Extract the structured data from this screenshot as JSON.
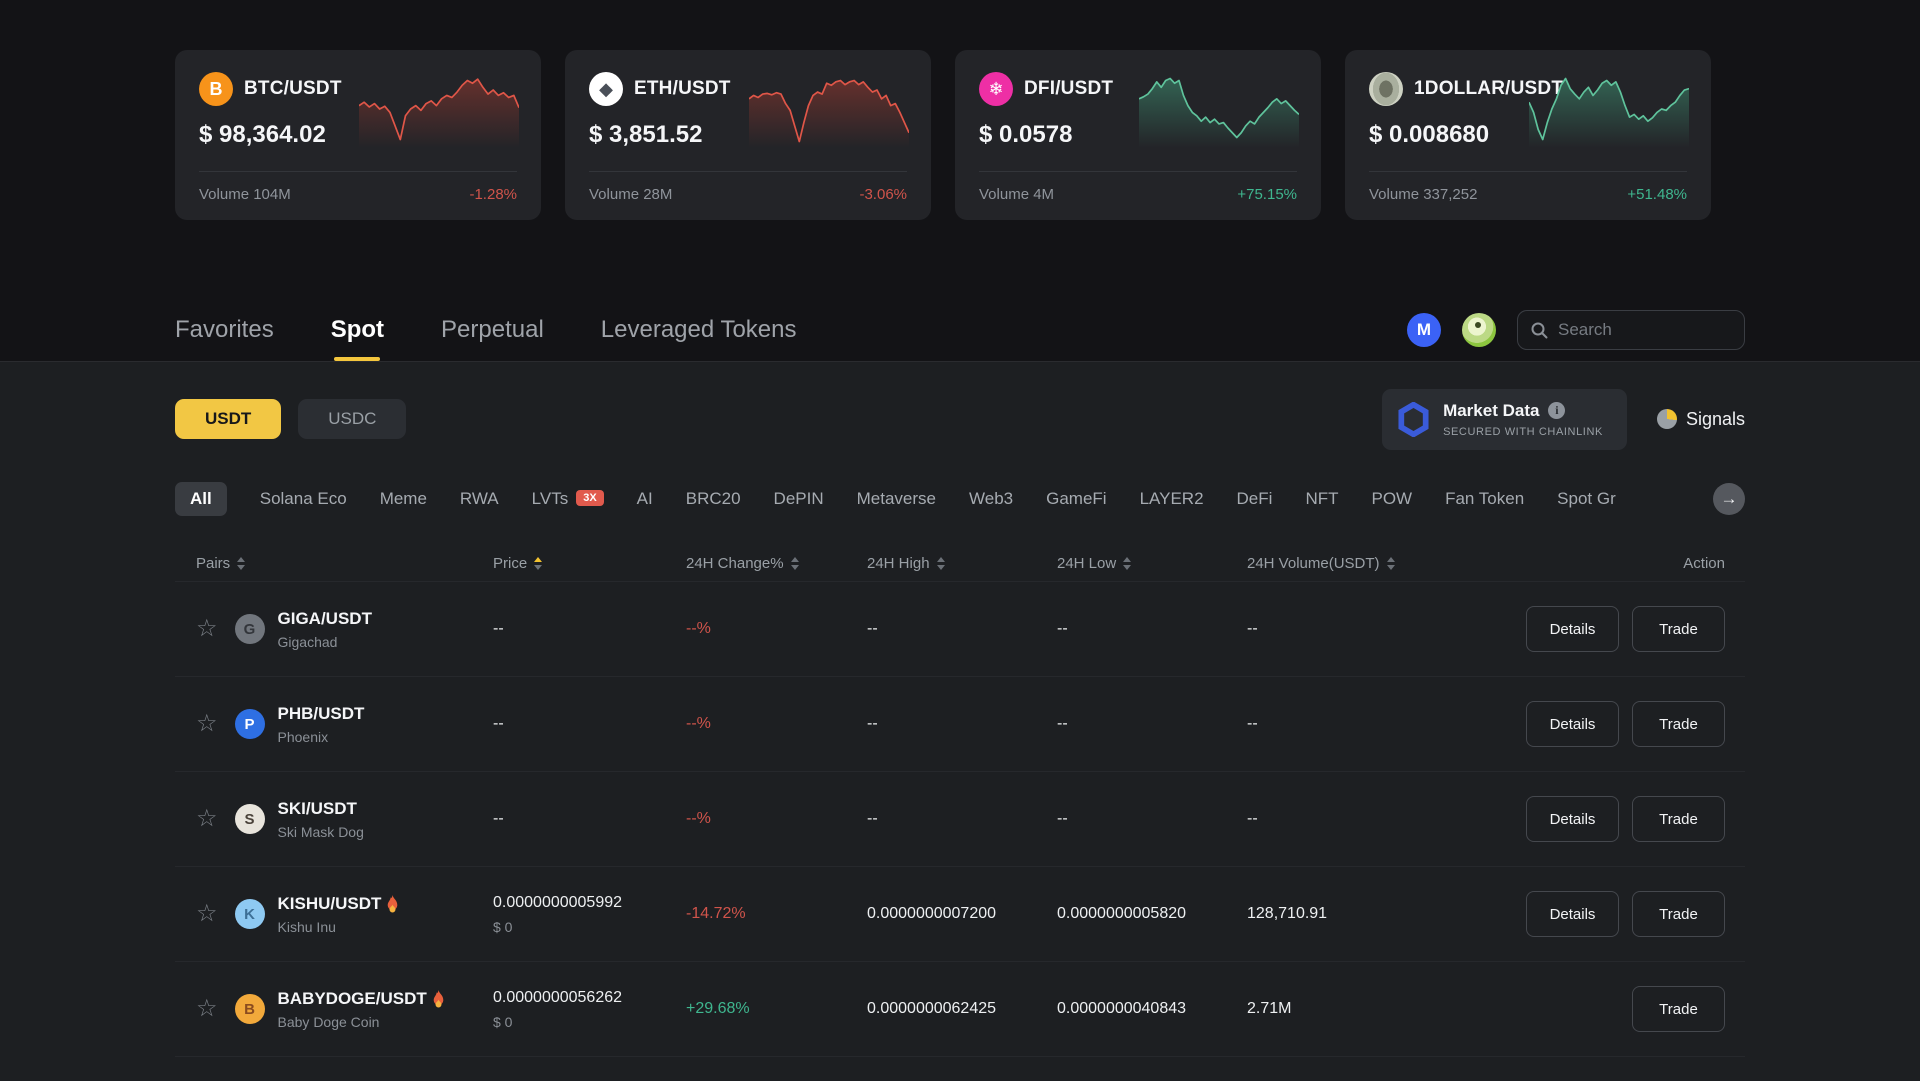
{
  "header_cards": [
    {
      "pair": "BTC/USDT",
      "price": "$ 98,364.02",
      "volume_label": "Volume 104M",
      "change": "-1.28%",
      "direction": "down",
      "icon": {
        "name": "btc",
        "bg": "#f7931a",
        "fg": "#ffffff",
        "glyph": "B"
      },
      "spark": [
        45,
        40,
        47,
        42,
        50,
        46,
        55,
        75,
        95,
        60,
        50,
        45,
        52,
        42,
        38,
        45,
        35,
        30,
        33,
        25,
        15,
        8,
        12,
        6,
        18,
        28,
        22,
        30,
        26,
        33,
        30,
        48
      ]
    },
    {
      "pair": "ETH/USDT",
      "price": "$ 3,851.52",
      "volume_label": "Volume 28M",
      "change": "-3.06%",
      "direction": "down",
      "icon": {
        "name": "eth",
        "bg": "#ffffff",
        "fg": "#4a4f58",
        "glyph": "◆"
      },
      "spark": [
        35,
        30,
        33,
        28,
        27,
        29,
        26,
        28,
        42,
        52,
        75,
        98,
        70,
        45,
        30,
        25,
        28,
        12,
        15,
        10,
        8,
        14,
        10,
        8,
        14,
        10,
        18,
        25,
        22,
        35,
        30,
        45,
        42,
        55,
        70,
        85
      ]
    },
    {
      "pair": "DFI/USDT",
      "price": "$ 0.0578",
      "volume_label": "Volume 4M",
      "change": "+75.15%",
      "direction": "up",
      "icon": {
        "name": "dfi",
        "bg": "#ee2fa5",
        "fg": "#ffffff",
        "glyph": "❄"
      },
      "spark": [
        35,
        32,
        28,
        20,
        10,
        18,
        8,
        5,
        12,
        8,
        30,
        45,
        55,
        60,
        68,
        62,
        70,
        65,
        72,
        70,
        78,
        85,
        92,
        85,
        75,
        68,
        72,
        62,
        55,
        48,
        40,
        35,
        42,
        38,
        45,
        52,
        58
      ]
    },
    {
      "pair": "1DOLLAR/USDT",
      "price": "$ 0.008680",
      "volume_label": "Volume 337,252",
      "change": "+51.48%",
      "direction": "up",
      "icon": {
        "name": "1dollar",
        "bg": "bill",
        "fg": "#5f6354",
        "glyph": ""
      },
      "spark": [
        40,
        55,
        80,
        95,
        70,
        50,
        35,
        15,
        5,
        20,
        28,
        35,
        25,
        18,
        30,
        22,
        12,
        8,
        15,
        10,
        25,
        45,
        62,
        58,
        65,
        60,
        68,
        63,
        55,
        50,
        52,
        45,
        40,
        30,
        22,
        20
      ]
    }
  ],
  "tabs": {
    "items": [
      "Favorites",
      "Spot",
      "Perpetual",
      "Leveraged Tokens"
    ],
    "active_index": 1
  },
  "toolbar": {
    "search_placeholder": "Search"
  },
  "quote_filter": {
    "options": [
      "USDT",
      "USDC"
    ],
    "active_index": 0
  },
  "market_data": {
    "title": "Market Data",
    "subtitle": "SECURED WITH CHAINLINK"
  },
  "signals": {
    "label": "Signals"
  },
  "categories": {
    "items": [
      {
        "label": "All",
        "active": true
      },
      {
        "label": "Solana Eco"
      },
      {
        "label": "Meme"
      },
      {
        "label": "RWA"
      },
      {
        "label": "LVTs",
        "badge": "3X"
      },
      {
        "label": "AI"
      },
      {
        "label": "BRC20"
      },
      {
        "label": "DePIN"
      },
      {
        "label": "Metaverse"
      },
      {
        "label": "Web3"
      },
      {
        "label": "GameFi"
      },
      {
        "label": "LAYER2"
      },
      {
        "label": "DeFi"
      },
      {
        "label": "NFT"
      },
      {
        "label": "POW"
      },
      {
        "label": "Fan Token"
      },
      {
        "label": "Spot Gr"
      }
    ]
  },
  "market_table": {
    "headers": [
      {
        "label": "Pairs",
        "sortable": true
      },
      {
        "label": "Price",
        "sortable": true,
        "sort": "asc"
      },
      {
        "label": "24H Change%",
        "sortable": true
      },
      {
        "label": "24H High",
        "sortable": true
      },
      {
        "label": "24H Low",
        "sortable": true
      },
      {
        "label": "24H Volume(USDT)",
        "sortable": true
      },
      {
        "label": "Action",
        "sortable": false
      }
    ],
    "rows": [
      {
        "pair": "GIGA/USDT",
        "name": "Gigachad",
        "hot": false,
        "price": "--",
        "price_usd": "",
        "change": "--%",
        "change_dir": "down",
        "high": "--",
        "low": "--",
        "volume": "--",
        "actions": [
          "Details",
          "Trade"
        ],
        "icon": {
          "bg": "#71767d",
          "fg": "#33363b",
          "glyph": "G"
        }
      },
      {
        "pair": "PHB/USDT",
        "name": "Phoenix",
        "hot": false,
        "price": "--",
        "price_usd": "",
        "change": "--%",
        "change_dir": "down",
        "high": "--",
        "low": "--",
        "volume": "--",
        "actions": [
          "Details",
          "Trade"
        ],
        "icon": {
          "bg": "#2e6fe3",
          "fg": "#ffffff",
          "glyph": "P"
        }
      },
      {
        "pair": "SKI/USDT",
        "name": "Ski Mask Dog",
        "hot": false,
        "price": "--",
        "price_usd": "",
        "change": "--%",
        "change_dir": "down",
        "high": "--",
        "low": "--",
        "volume": "--",
        "actions": [
          "Details",
          "Trade"
        ],
        "icon": {
          "bg": "#e8e4dc",
          "fg": "#4a423a",
          "glyph": "S"
        }
      },
      {
        "pair": "KISHU/USDT",
        "name": "Kishu Inu",
        "hot": true,
        "price": "0.0000000005992",
        "price_usd": "$ 0",
        "change": "-14.72%",
        "change_dir": "down",
        "high": "0.0000000007200",
        "low": "0.0000000005820",
        "volume": "128,710.91",
        "actions": [
          "Details",
          "Trade"
        ],
        "icon": {
          "bg": "#8ec9f2",
          "fg": "#3d6f96",
          "glyph": "K"
        }
      },
      {
        "pair": "BABYDOGE/USDT",
        "name": "Baby Doge Coin",
        "hot": true,
        "price": "0.0000000056262",
        "price_usd": "$ 0",
        "change": "+29.68%",
        "change_dir": "up",
        "high": "0.0000000062425",
        "low": "0.0000000040843",
        "volume": "2.71M",
        "actions": [
          "Trade"
        ],
        "icon": {
          "bg": "#f2a93b",
          "fg": "#8a4b1f",
          "glyph": "B"
        }
      }
    ]
  },
  "colors": {
    "up": "#3fb68f",
    "down": "#d0544b",
    "spark_up": "#5fc39c",
    "spark_down": "#e05648",
    "accent": "#f2c744"
  }
}
